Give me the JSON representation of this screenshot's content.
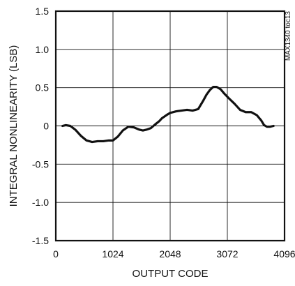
{
  "chart_data": {
    "type": "line",
    "title": "",
    "xlabel": "OUTPUT CODE",
    "ylabel": "INTEGRAL NONLINEARITY (LSB)",
    "side_label": "MAX1340 toc13",
    "xlim": [
      0,
      4096
    ],
    "ylim": [
      -1.5,
      1.5
    ],
    "x_ticks": [
      0,
      1024,
      2048,
      3072,
      4096
    ],
    "x_tick_labels": [
      "0",
      "1024",
      "2048",
      "3072",
      "4096"
    ],
    "y_ticks": [
      1.5,
      1.0,
      0.5,
      0,
      -0.5,
      -1.0,
      -1.5
    ],
    "y_tick_labels": [
      "1.5",
      "1.0",
      "0.5",
      "0",
      "-0.5",
      "-1.0",
      "-1.5"
    ],
    "grid": true,
    "series": [
      {
        "color": "#111111",
        "x": [
          120,
          180,
          260,
          350,
          450,
          550,
          650,
          750,
          850,
          950,
          1024,
          1110,
          1200,
          1300,
          1400,
          1500,
          1560,
          1620,
          1700,
          1780,
          1850,
          1900,
          2000,
          2048,
          2150,
          2250,
          2350,
          2450,
          2550,
          2640,
          2700,
          2760,
          2820,
          2880,
          2950,
          3020,
          3100,
          3200,
          3300,
          3400,
          3500,
          3600,
          3680,
          3730,
          3780,
          3840,
          3900
        ],
        "y": [
          0.0,
          0.01,
          0.0,
          -0.05,
          -0.13,
          -0.19,
          -0.21,
          -0.2,
          -0.2,
          -0.19,
          -0.19,
          -0.14,
          -0.06,
          -0.01,
          -0.02,
          -0.05,
          -0.06,
          -0.05,
          -0.03,
          0.02,
          0.06,
          0.1,
          0.15,
          0.17,
          0.19,
          0.2,
          0.21,
          0.2,
          0.22,
          0.33,
          0.41,
          0.47,
          0.51,
          0.51,
          0.48,
          0.42,
          0.36,
          0.29,
          0.21,
          0.18,
          0.18,
          0.14,
          0.07,
          0.01,
          -0.01,
          -0.01,
          0.0
        ]
      }
    ]
  }
}
